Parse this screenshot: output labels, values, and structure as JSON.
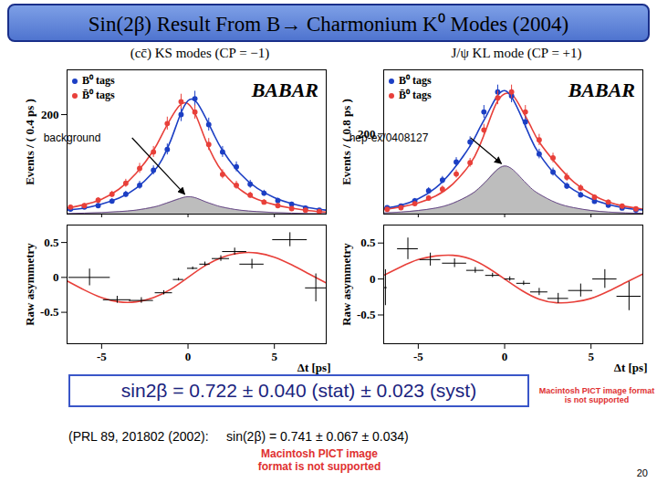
{
  "slide": {
    "title": "Sin(2β) Result From B→ Charmonium K⁰ Modes (2004)",
    "result": "sin2β = 0.722 ± 0.040 (stat) ± 0.023 (syst)",
    "previous": "(PRL 89, 201802 (2002):     sin(2β) = 0.741 ± 0.067 ± 0.034)",
    "placeholders": [
      "Macintosh PICT image format is not supported",
      "Macintosh PICT image format is not supported"
    ],
    "page": 20
  },
  "chart_data": [
    {
      "type": "scatter",
      "title": "(cc̄) KS modes (CP = −1)",
      "ylabel": "Events / ( 0.4 ps )",
      "xlim": [
        -7,
        8
      ],
      "ylim": [
        0,
        290
      ],
      "xticks": [
        -5,
        0,
        5
      ],
      "yticks": [
        200
      ],
      "tick_labels": "y",
      "legend": "top-left",
      "annotations": [
        "BABAR",
        "background"
      ],
      "series": [
        {
          "type": "area",
          "color": "#bdbdbd",
          "x": [
            -7,
            -6,
            -5,
            -4,
            -3,
            -2,
            -1.5,
            -1,
            -0.5,
            0,
            0.5,
            1,
            1.5,
            2,
            3,
            4,
            5,
            6,
            7,
            8
          ],
          "values": [
            1,
            2,
            3,
            5,
            8,
            14,
            19,
            25,
            31,
            35,
            32,
            25,
            19,
            14,
            8,
            5,
            3,
            2,
            1,
            1
          ]
        },
        {
          "type": "line",
          "color": "#e8403a",
          "x": [
            -7,
            -6,
            -5,
            -4,
            -3,
            -2,
            -1.5,
            -1,
            -0.5,
            0,
            0.5,
            1,
            1.5,
            2,
            3,
            4,
            5,
            6,
            7,
            8
          ],
          "values": [
            12,
            19,
            30,
            50,
            82,
            128,
            160,
            192,
            218,
            222,
            195,
            150,
            112,
            85,
            50,
            30,
            19,
            12,
            7,
            4
          ]
        },
        {
          "type": "line",
          "color": "#1c3fc4",
          "x": [
            -7,
            -6,
            -5,
            -4,
            -3,
            -2,
            -1.5,
            -1,
            -0.5,
            0,
            0.5,
            1,
            1.5,
            2,
            3,
            4,
            5,
            6,
            7,
            8
          ],
          "values": [
            8,
            12,
            20,
            32,
            52,
            85,
            110,
            148,
            195,
            228,
            225,
            195,
            160,
            128,
            82,
            52,
            33,
            21,
            13,
            8
          ]
        },
        {
          "name": "B⁰ tags",
          "type": "scatter",
          "marker": "circle",
          "color": "#1c3fc4",
          "x": [
            -6.8,
            -6,
            -5.2,
            -4.4,
            -3.6,
            -2.8,
            -2,
            -1.2,
            -0.4,
            0.4,
            1.2,
            2,
            2.8,
            3.6,
            4.4,
            5.2,
            6,
            6.8,
            7.6
          ],
          "values": [
            10,
            14,
            17,
            26,
            40,
            58,
            88,
            130,
            200,
            232,
            180,
            125,
            95,
            60,
            42,
            27,
            20,
            12,
            8
          ],
          "errors": [
            3,
            4,
            4,
            5,
            6,
            8,
            9,
            11,
            14,
            15,
            13,
            11,
            10,
            8,
            6,
            5,
            4,
            3,
            3
          ]
        },
        {
          "name": "B̄⁰ tags",
          "type": "scatter",
          "marker": "circle",
          "color": "#e8403a",
          "x": [
            -6.8,
            -6,
            -5.2,
            -4.4,
            -3.6,
            -2.8,
            -2,
            -1.2,
            -0.4,
            0.4,
            1.2,
            2,
            2.8,
            3.6,
            4.4,
            5.2,
            6,
            6.8,
            7.6
          ],
          "values": [
            14,
            17,
            28,
            40,
            62,
            92,
            125,
            182,
            226,
            205,
            140,
            80,
            58,
            38,
            24,
            17,
            11,
            8,
            5
          ],
          "errors": [
            4,
            4,
            5,
            6,
            8,
            10,
            11,
            13,
            15,
            14,
            12,
            9,
            8,
            6,
            5,
            4,
            3,
            3,
            2
          ]
        }
      ]
    },
    {
      "type": "scatter",
      "ylabel": "Raw asymmetry",
      "xlabel": "Δt [ps]",
      "xlim": [
        -7,
        8
      ],
      "ylim": [
        -0.95,
        0.75
      ],
      "xticks": [
        -5,
        0,
        5
      ],
      "yticks": [
        0.5,
        0,
        -0.5
      ],
      "series": [
        {
          "type": "line",
          "color": "#e8403a",
          "x": [
            -7,
            -6,
            -5,
            -4,
            -3,
            -2,
            -1,
            0,
            1,
            2,
            3,
            4,
            5,
            6,
            7,
            8
          ],
          "values": [
            -0.05,
            -0.18,
            -0.29,
            -0.35,
            -0.35,
            -0.29,
            -0.17,
            0,
            0.17,
            0.29,
            0.35,
            0.35,
            0.29,
            0.18,
            0.05,
            -0.08
          ]
        },
        {
          "type": "scatter",
          "marker": "none",
          "color": "#000000",
          "x": [
            -5.7,
            -4.1,
            -2.7,
            -1.4,
            -0.55,
            0.27,
            0.98,
            1.9,
            2.7,
            3.7,
            5.9,
            7.4
          ],
          "values": [
            0,
            -0.32,
            -0.33,
            -0.22,
            -0.03,
            0.13,
            0.19,
            0.27,
            0.37,
            0.19,
            0.54,
            -0.15
          ],
          "errors": [
            0.12,
            0.05,
            0.04,
            0.03,
            0.02,
            0.02,
            0.03,
            0.04,
            0.05,
            0.07,
            0.1,
            0.2
          ],
          "xerrors": [
            1.2,
            0.8,
            0.7,
            0.5,
            0.3,
            0.3,
            0.3,
            0.5,
            0.7,
            0.7,
            1.0,
            0.6
          ]
        }
      ]
    },
    {
      "type": "scatter",
      "title": "J/ψ KL mode (CP = +1)",
      "ylabel": "Events / ( 0.8 ps )",
      "xlim": [
        -7,
        8
      ],
      "ylim": [
        0,
        360
      ],
      "xticks": [
        -5,
        0,
        5
      ],
      "yticks": [
        200
      ],
      "tick_labels": "y",
      "legend": "top-left",
      "annotations": [
        "BABAR",
        "hep-ex/0408127"
      ],
      "series": [
        {
          "type": "area",
          "color": "#bdbdbd",
          "x": [
            -7,
            -6,
            -5,
            -4,
            -3,
            -2,
            -1.5,
            -1,
            -0.5,
            0,
            0.5,
            1,
            1.5,
            2,
            3,
            4,
            5,
            6,
            7,
            8
          ],
          "values": [
            3,
            5,
            9,
            15,
            27,
            48,
            64,
            85,
            108,
            120,
            110,
            88,
            66,
            50,
            28,
            16,
            9,
            5,
            3,
            2
          ]
        },
        {
          "type": "line",
          "color": "#e8403a",
          "x": [
            -7,
            -6,
            -5,
            -4,
            -3,
            -2,
            -1.5,
            -1,
            -0.5,
            0,
            0.5,
            1,
            1.5,
            2,
            3,
            4,
            5,
            6,
            7,
            8
          ],
          "values": [
            12,
            18,
            28,
            45,
            75,
            125,
            165,
            220,
            275,
            300,
            295,
            260,
            220,
            180,
            125,
            80,
            50,
            30,
            19,
            12
          ]
        },
        {
          "type": "line",
          "color": "#1c3fc4",
          "x": [
            -7,
            -6,
            -5,
            -4,
            -3,
            -2,
            -1.5,
            -1,
            -0.5,
            0,
            0.5,
            1,
            1.5,
            2,
            3,
            4,
            5,
            6,
            7,
            8
          ],
          "values": [
            14,
            22,
            38,
            65,
            110,
            170,
            210,
            250,
            290,
            308,
            285,
            240,
            190,
            150,
            95,
            60,
            38,
            24,
            15,
            10
          ]
        },
        {
          "name": "B⁰ tags",
          "type": "scatter",
          "marker": "circle",
          "color": "#1c3fc4",
          "x": [
            -6.8,
            -6,
            -5.2,
            -4.4,
            -3.6,
            -2.8,
            -2,
            -1.2,
            -0.4,
            0.4,
            1.2,
            2,
            2.8,
            3.6,
            4.4,
            5.2,
            6,
            6.8,
            7.6
          ],
          "values": [
            16,
            20,
            33,
            58,
            85,
            130,
            180,
            255,
            305,
            295,
            230,
            150,
            105,
            70,
            48,
            32,
            22,
            15,
            10
          ],
          "errors": [
            4,
            4,
            6,
            8,
            9,
            11,
            13,
            16,
            17,
            17,
            15,
            12,
            10,
            8,
            7,
            6,
            5,
            4,
            4
          ]
        },
        {
          "name": "B̄⁰ tags",
          "type": "scatter",
          "marker": "circle",
          "color": "#e8403a",
          "x": [
            -6.8,
            -6,
            -5.2,
            -4.4,
            -3.6,
            -2.8,
            -2,
            -1.2,
            -0.4,
            0.4,
            1.2,
            2,
            2.8,
            3.6,
            4.4,
            5.2,
            6,
            6.8,
            7.6
          ],
          "values": [
            12,
            16,
            26,
            40,
            62,
            100,
            128,
            210,
            290,
            305,
            255,
            185,
            140,
            92,
            65,
            42,
            30,
            20,
            13
          ],
          "errors": [
            4,
            4,
            5,
            6,
            8,
            10,
            11,
            14,
            17,
            17,
            16,
            14,
            12,
            10,
            8,
            6,
            5,
            4,
            4
          ]
        }
      ]
    },
    {
      "type": "scatter",
      "ylabel": "Raw asymmetry",
      "xlabel": "Δt [ps]",
      "xlim": [
        -7,
        8
      ],
      "ylim": [
        -0.9,
        0.75
      ],
      "xticks": [
        -5,
        0,
        5
      ],
      "yticks": [
        0.5,
        0,
        -0.5
      ],
      "series": [
        {
          "type": "line",
          "color": "#e8403a",
          "x": [
            -7,
            -6,
            -5,
            -4,
            -3,
            -2,
            -1,
            0,
            1,
            2,
            3,
            4,
            5,
            6,
            7,
            8
          ],
          "values": [
            0.05,
            0.17,
            0.27,
            0.32,
            0.33,
            0.28,
            0.16,
            0,
            -0.16,
            -0.28,
            -0.33,
            -0.32,
            -0.27,
            -0.17,
            -0.05,
            0.07
          ]
        },
        {
          "type": "scatter",
          "marker": "none",
          "color": "#000000",
          "x": [
            -6.9,
            -5.6,
            -4.3,
            -2.9,
            -1.7,
            -0.7,
            0.3,
            1.1,
            2.0,
            3.1,
            4.4,
            5.8,
            7.2
          ],
          "values": [
            -0.12,
            0.42,
            0.27,
            0.22,
            0.12,
            0.05,
            0,
            -0.06,
            -0.18,
            -0.27,
            -0.16,
            0,
            -0.24
          ],
          "errors": [
            0.25,
            0.15,
            0.09,
            0.06,
            0.04,
            0.03,
            0.03,
            0.03,
            0.05,
            0.07,
            0.09,
            0.13,
            0.2
          ],
          "xerrors": [
            0.1,
            0.6,
            0.6,
            0.7,
            0.5,
            0.4,
            0.3,
            0.4,
            0.5,
            0.6,
            0.7,
            0.7,
            0.7
          ]
        }
      ]
    }
  ]
}
